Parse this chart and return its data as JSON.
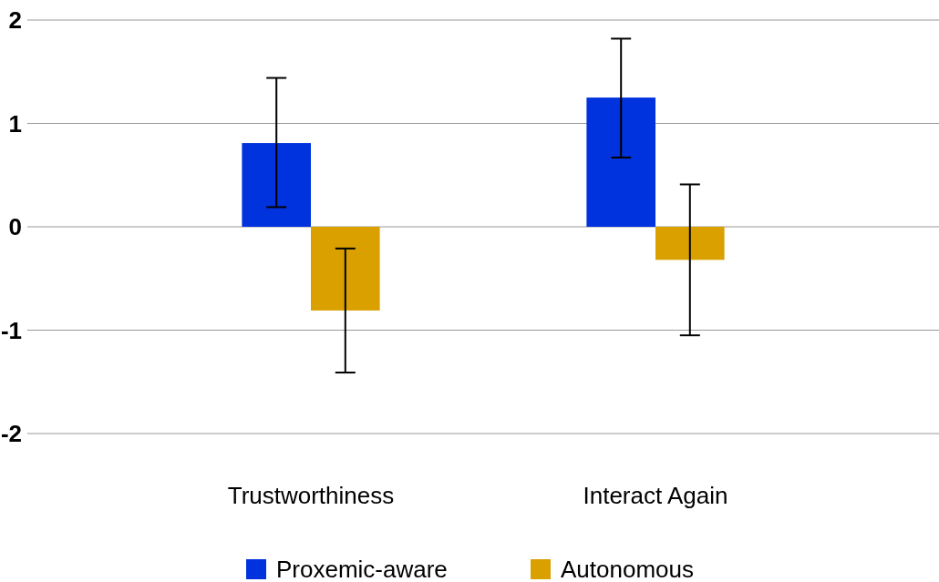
{
  "chart_data": {
    "type": "bar",
    "categories": [
      "Trustworthiness",
      "Interact Again"
    ],
    "series": [
      {
        "name": "Proxemic-aware",
        "color": "#0033dd",
        "values": [
          0.81,
          1.25
        ],
        "errors": [
          [
            0.19,
            1.44
          ],
          [
            0.67,
            1.82
          ]
        ]
      },
      {
        "name": "Autonomous",
        "color": "#d9a000",
        "values": [
          -0.81,
          -0.32
        ],
        "errors": [
          [
            -1.41,
            -0.21
          ],
          [
            -1.05,
            0.41
          ]
        ]
      }
    ],
    "ylim": [
      -2,
      2
    ],
    "yticks": [
      -2,
      -1,
      0,
      1,
      2
    ],
    "grid": "y",
    "legend": "bottom"
  }
}
